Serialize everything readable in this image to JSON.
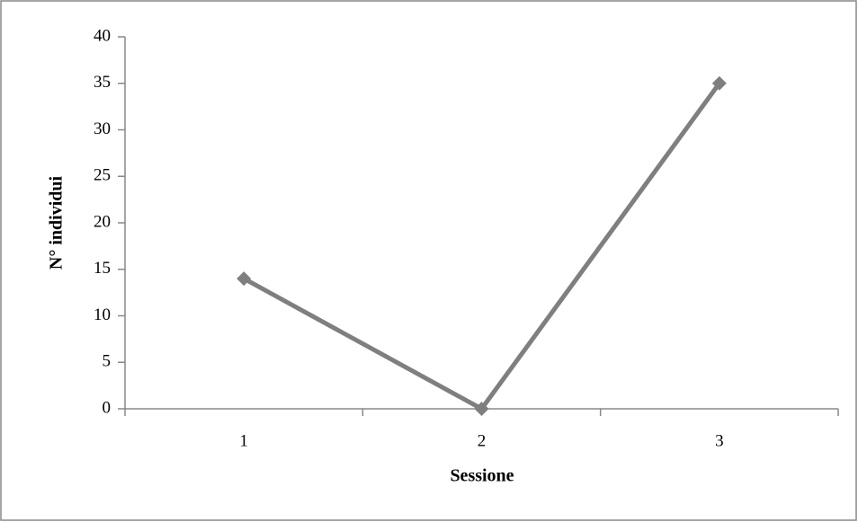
{
  "chart_data": {
    "type": "line",
    "x_label": "Sessione",
    "y_label": "N° individui",
    "categories": [
      "1",
      "2",
      "3"
    ],
    "series": [
      {
        "name": "N° individui",
        "color": "#7f7f7f",
        "values": [
          14,
          0,
          35
        ]
      }
    ],
    "ylim": [
      0,
      40
    ],
    "yticks": [
      0,
      5,
      10,
      15,
      20,
      25,
      30,
      35,
      40
    ],
    "grid": false
  }
}
